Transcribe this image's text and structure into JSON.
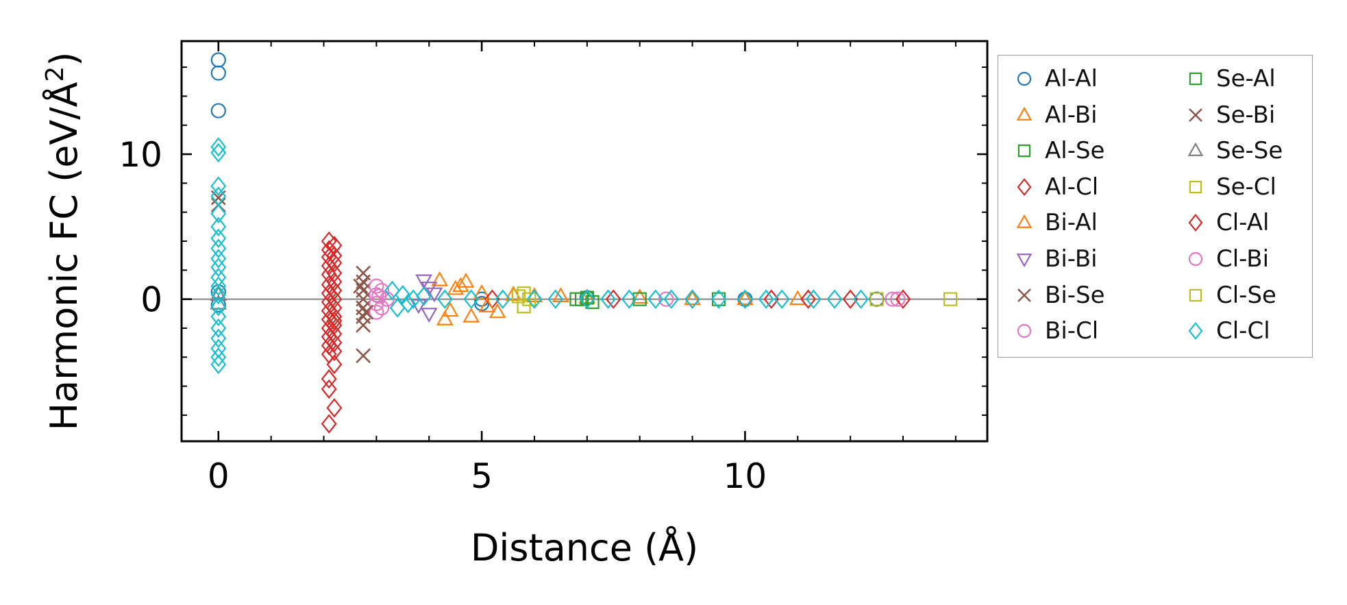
{
  "chart_data": {
    "type": "scatter",
    "xlabel": "Distance (Å)",
    "ylabel_main": "Harmonic FC (eV/Å",
    "ylabel_sup": "2",
    "ylabel_end": ")",
    "xlim": [
      -0.7,
      14.6
    ],
    "ylim": [
      -9.8,
      17.8
    ],
    "xticks": [
      0,
      5,
      10
    ],
    "yticks": [
      0,
      10
    ],
    "xtick_labels": [
      "0",
      "5",
      "10"
    ],
    "ytick_labels": [
      "0",
      "10"
    ],
    "zero_line": true,
    "legend_placement": "outside-right",
    "series": [
      {
        "name": "Al-Al",
        "marker": "circle",
        "color": "#1f77b4",
        "points": [
          [
            0,
            16.5
          ],
          [
            0,
            15.6
          ],
          [
            0,
            13.0
          ],
          [
            0,
            0.5
          ],
          [
            0,
            -0.4
          ],
          [
            5,
            0.0
          ],
          [
            5,
            -0.3
          ],
          [
            7,
            0.1
          ],
          [
            10,
            0.0
          ],
          [
            12.5,
            0.0
          ]
        ]
      },
      {
        "name": "Al-Bi",
        "marker": "triangle-up",
        "color": "#ff7f0e",
        "points": [
          [
            4.2,
            1.3
          ],
          [
            4.3,
            -1.4
          ],
          [
            4.5,
            0.7
          ],
          [
            4.7,
            1.2
          ],
          [
            4.8,
            -1.2
          ],
          [
            5.0,
            0.4
          ],
          [
            5.3,
            -0.9
          ],
          [
            5.6,
            0.3
          ],
          [
            6.5,
            0.2
          ],
          [
            7.0,
            0.1
          ],
          [
            8.0,
            0.1
          ],
          [
            9.0,
            0.0
          ],
          [
            10.0,
            0.0
          ],
          [
            11.0,
            0.0
          ]
        ]
      },
      {
        "name": "Al-Se",
        "marker": "square",
        "color": "#2ca02c",
        "points": [
          [
            6.8,
            0.0
          ],
          [
            7.0,
            0.1
          ],
          [
            7.1,
            -0.2
          ],
          [
            8.0,
            0.0
          ],
          [
            9.5,
            0.0
          ]
        ]
      },
      {
        "name": "Al-Cl",
        "marker": "diamond",
        "color": "#d62728",
        "points": [
          [
            2.1,
            4.0
          ],
          [
            2.1,
            3.4
          ],
          [
            2.1,
            2.9
          ],
          [
            2.1,
            2.3
          ],
          [
            2.1,
            1.7
          ],
          [
            2.1,
            1.0
          ],
          [
            2.1,
            0.4
          ],
          [
            2.1,
            -0.2
          ],
          [
            2.1,
            -0.8
          ],
          [
            2.1,
            -1.4
          ],
          [
            2.1,
            -2.0
          ],
          [
            2.1,
            -2.6
          ],
          [
            2.1,
            -3.2
          ],
          [
            2.1,
            -3.8
          ],
          [
            2.2,
            3.7
          ],
          [
            2.2,
            3.0
          ],
          [
            2.2,
            2.5
          ],
          [
            2.2,
            1.8
          ],
          [
            2.2,
            1.2
          ],
          [
            2.2,
            0.6
          ],
          [
            2.2,
            0.0
          ],
          [
            2.2,
            -0.6
          ],
          [
            2.2,
            -1.2
          ],
          [
            2.2,
            -1.8
          ],
          [
            2.2,
            -2.4
          ],
          [
            2.2,
            -3.0
          ],
          [
            2.2,
            -3.6
          ],
          [
            2.1,
            -5.5
          ],
          [
            2.1,
            -6.2
          ],
          [
            2.2,
            -7.5
          ],
          [
            2.1,
            -8.6
          ],
          [
            2.2,
            -4.5
          ],
          [
            5.2,
            0.0
          ],
          [
            7.5,
            0.0
          ],
          [
            9.0,
            0.0
          ],
          [
            10.5,
            0.0
          ],
          [
            11.2,
            0.0
          ],
          [
            12.0,
            0.0
          ]
        ]
      },
      {
        "name": "Bi-Al",
        "marker": "triangle-up",
        "color": "#ff7f0e",
        "points": [
          [
            4.4,
            -0.8
          ],
          [
            4.6,
            0.9
          ],
          [
            5.1,
            -0.5
          ],
          [
            6.0,
            0.2
          ]
        ]
      },
      {
        "name": "Bi-Bi",
        "marker": "triangle-down",
        "color": "#9467bd",
        "points": [
          [
            3.9,
            1.3
          ],
          [
            4.0,
            0.8
          ],
          [
            4.0,
            -1.0
          ],
          [
            4.1,
            0.4
          ],
          [
            3.8,
            -0.4
          ]
        ]
      },
      {
        "name": "Bi-Se",
        "marker": "x",
        "color": "#8c564b",
        "points": [
          [
            0,
            7.0
          ],
          [
            0,
            6.5
          ],
          [
            2.75,
            1.8
          ],
          [
            2.75,
            1.2
          ],
          [
            2.75,
            0.6
          ],
          [
            2.75,
            0.0
          ],
          [
            2.75,
            -0.6
          ],
          [
            2.75,
            -1.2
          ],
          [
            2.75,
            -1.8
          ],
          [
            2.75,
            -3.9
          ]
        ]
      },
      {
        "name": "Bi-Cl",
        "marker": "circle",
        "color": "#e377c2",
        "points": [
          [
            3.0,
            0.9
          ],
          [
            3.0,
            0.3
          ],
          [
            3.0,
            -0.3
          ],
          [
            3.0,
            -0.9
          ],
          [
            3.1,
            0.6
          ],
          [
            3.1,
            -0.6
          ],
          [
            3.2,
            0.0
          ],
          [
            8.5,
            0.0
          ],
          [
            12.8,
            0.0
          ]
        ]
      },
      {
        "name": "Se-Al",
        "marker": "square",
        "color": "#2ca02c",
        "points": [
          [
            6.9,
            0.0
          ]
        ]
      },
      {
        "name": "Se-Bi",
        "marker": "x",
        "color": "#8c564b",
        "points": [
          [
            2.7,
            0.9
          ],
          [
            2.8,
            -0.9
          ]
        ]
      },
      {
        "name": "Se-Se",
        "marker": "triangle-up",
        "color": "#7f7f7f",
        "points": [
          [
            0,
            0.3
          ],
          [
            0,
            -0.3
          ]
        ]
      },
      {
        "name": "Se-Cl",
        "marker": "square",
        "color": "#bcbd22",
        "points": [
          [
            5.8,
            0.4
          ],
          [
            5.8,
            -0.5
          ],
          [
            5.9,
            0.0
          ],
          [
            12.5,
            0.0
          ],
          [
            13.9,
            0.0
          ]
        ]
      },
      {
        "name": "Cl-Al",
        "marker": "diamond",
        "color": "#d62728",
        "points": [
          [
            2.2,
            -1.5
          ],
          [
            13.0,
            0.0
          ]
        ]
      },
      {
        "name": "Cl-Bi",
        "marker": "circle",
        "color": "#e377c2",
        "points": [
          [
            3.05,
            0.2
          ],
          [
            12.9,
            0.0
          ]
        ]
      },
      {
        "name": "Cl-Se",
        "marker": "square",
        "color": "#bcbd22",
        "points": [
          [
            5.7,
            0.2
          ]
        ]
      },
      {
        "name": "Cl-Cl",
        "marker": "diamond",
        "color": "#17becf",
        "points": [
          [
            0,
            10.5
          ],
          [
            0,
            10.1
          ],
          [
            0,
            7.8
          ],
          [
            0,
            7.1
          ],
          [
            0,
            5.9
          ],
          [
            0,
            5.0
          ],
          [
            0,
            4.2
          ],
          [
            0,
            3.5
          ],
          [
            0,
            2.8
          ],
          [
            0,
            2.2
          ],
          [
            0,
            1.5
          ],
          [
            0,
            0.9
          ],
          [
            0,
            0.3
          ],
          [
            0,
            -0.5
          ],
          [
            0,
            -1.2
          ],
          [
            0,
            -2.0
          ],
          [
            0,
            -2.7
          ],
          [
            0,
            -3.4
          ],
          [
            0,
            -4.0
          ],
          [
            0,
            -4.5
          ],
          [
            3.3,
            0.6
          ],
          [
            3.4,
            -0.6
          ],
          [
            3.5,
            0.3
          ],
          [
            3.6,
            -0.3
          ],
          [
            3.7,
            0.0
          ],
          [
            3.9,
            0.2
          ],
          [
            4.3,
            0.0
          ],
          [
            4.8,
            0.0
          ],
          [
            5.4,
            0.0
          ],
          [
            6.0,
            0.0
          ],
          [
            6.4,
            0.0
          ],
          [
            7.0,
            0.0
          ],
          [
            7.4,
            0.0
          ],
          [
            7.8,
            0.0
          ],
          [
            8.3,
            0.0
          ],
          [
            8.6,
            0.0
          ],
          [
            9.0,
            0.0
          ],
          [
            9.5,
            0.0
          ],
          [
            10.0,
            0.0
          ],
          [
            10.4,
            0.0
          ],
          [
            10.7,
            0.0
          ],
          [
            11.3,
            0.0
          ],
          [
            11.7,
            0.0
          ],
          [
            12.2,
            0.0
          ]
        ]
      }
    ]
  }
}
